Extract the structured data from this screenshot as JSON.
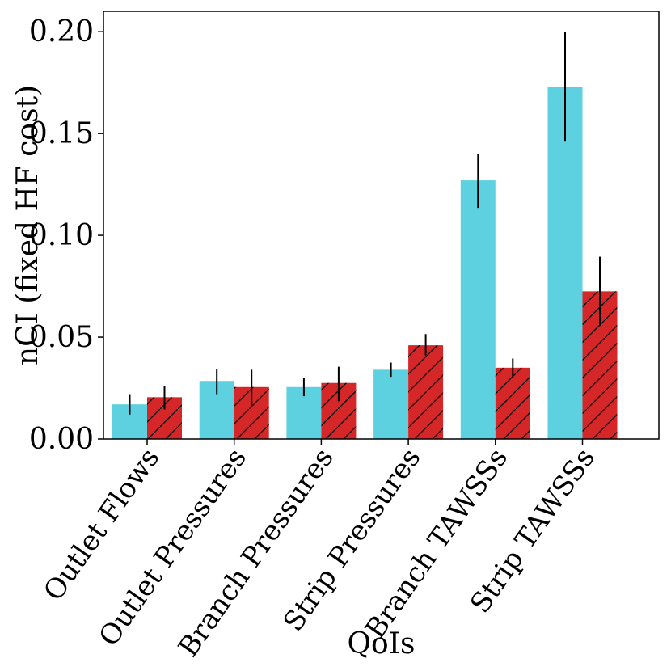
{
  "chart_data": {
    "type": "bar",
    "title": "",
    "xlabel": "QoIs",
    "ylabel": "nCI (fixed HF cost)",
    "ylim": [
      0,
      0.21
    ],
    "yticks": [
      "0.00",
      "0.05",
      "0.10",
      "0.15",
      "0.20"
    ],
    "ytick_values": [
      0,
      0.05,
      0.1,
      0.15,
      0.2
    ],
    "categories": [
      "Outlet Flows",
      "Outlet Pressures",
      "Branch Pressures",
      "Strip Pressures",
      "Branch TAWSSs",
      "Strip TAWSSs"
    ],
    "grid": false,
    "legend": "none",
    "series": [
      {
        "name": "series 1",
        "color": "#5dd1df",
        "hatch": "none",
        "values": [
          0.017,
          0.0285,
          0.0255,
          0.034,
          0.127,
          0.173
        ],
        "err_low": [
          0.012,
          0.022,
          0.021,
          0.0305,
          0.1135,
          0.146
        ],
        "err_high": [
          0.022,
          0.0345,
          0.03,
          0.0375,
          0.14,
          0.2
        ]
      },
      {
        "name": "series 2",
        "color": "#d62728",
        "hatch": "diagonal",
        "values": [
          0.0205,
          0.0255,
          0.0275,
          0.046,
          0.035,
          0.0725
        ],
        "err_low": [
          0.0145,
          0.0165,
          0.0185,
          0.041,
          0.0305,
          0.0555
        ],
        "err_high": [
          0.026,
          0.034,
          0.0355,
          0.0515,
          0.0395,
          0.0895
        ]
      }
    ]
  }
}
